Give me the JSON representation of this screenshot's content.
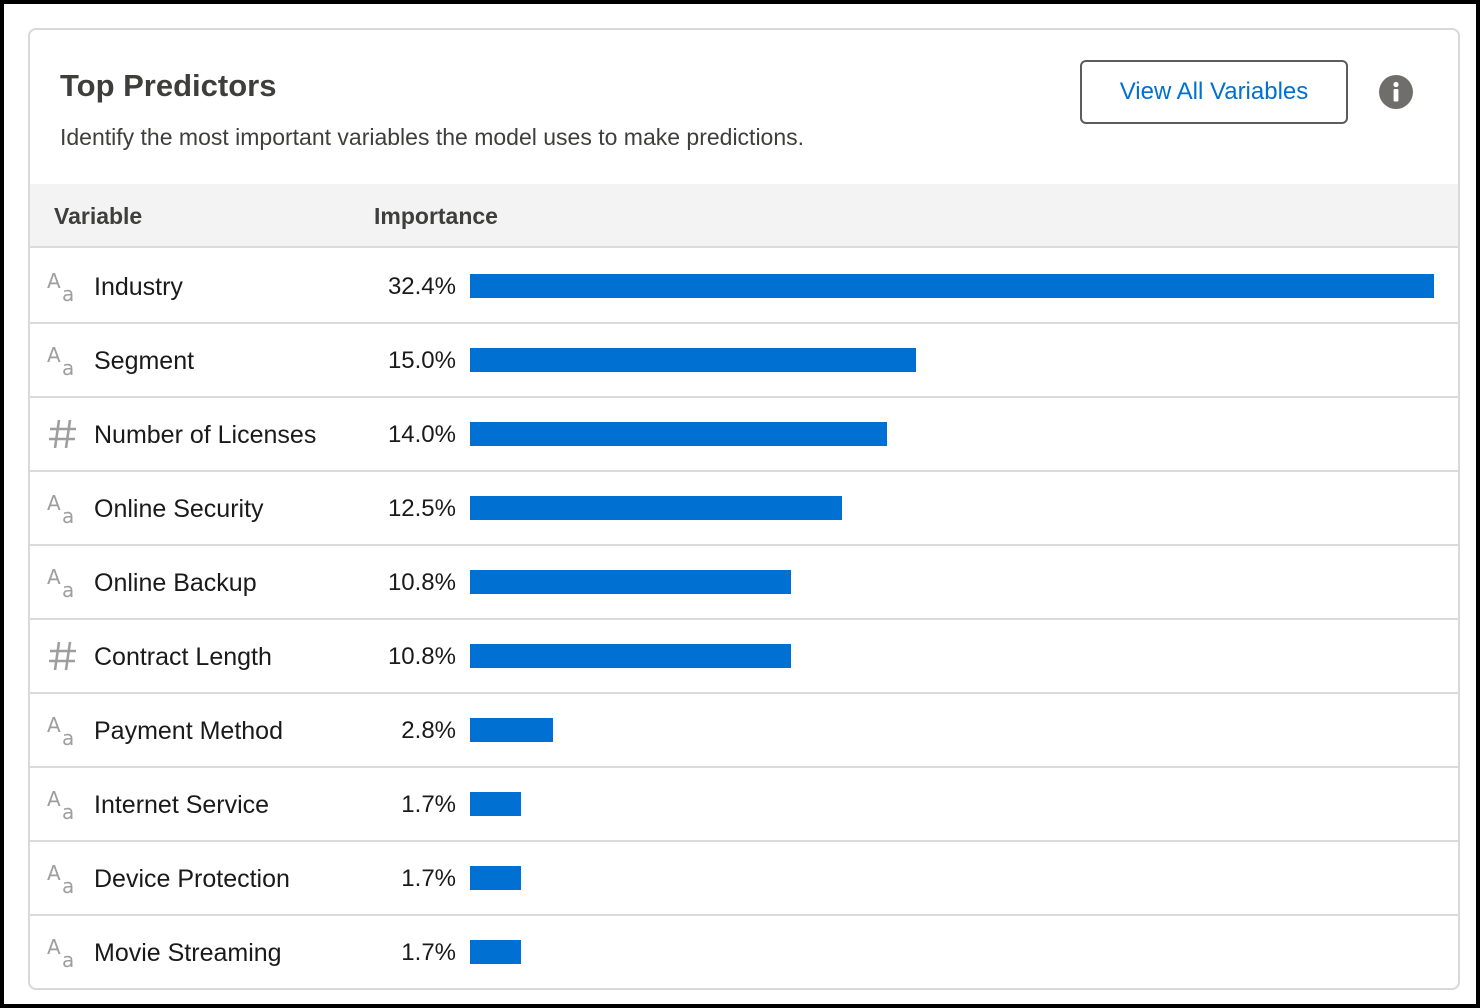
{
  "header": {
    "title": "Top Predictors",
    "subtitle": "Identify the most important variables the model uses to make predictions.",
    "view_all_label": "View All Variables"
  },
  "columns": {
    "variable": "Variable",
    "importance": "Importance"
  },
  "colors": {
    "bar": "#0070d2",
    "link": "#0070d2",
    "icon": "#9e9e9e",
    "info_icon": "#706e6b"
  },
  "max_importance": 32.4,
  "rows": [
    {
      "name": "Industry",
      "type": "text",
      "importance": 32.4,
      "label": "32.4%"
    },
    {
      "name": "Segment",
      "type": "text",
      "importance": 15.0,
      "label": "15.0%"
    },
    {
      "name": "Number of Licenses",
      "type": "number",
      "importance": 14.0,
      "label": "14.0%"
    },
    {
      "name": "Online Security",
      "type": "text",
      "importance": 12.5,
      "label": "12.5%"
    },
    {
      "name": "Online Backup",
      "type": "text",
      "importance": 10.8,
      "label": "10.8%"
    },
    {
      "name": "Contract Length",
      "type": "number",
      "importance": 10.8,
      "label": "10.8%"
    },
    {
      "name": "Payment Method",
      "type": "text",
      "importance": 2.8,
      "label": "2.8%"
    },
    {
      "name": "Internet Service",
      "type": "text",
      "importance": 1.7,
      "label": "1.7%"
    },
    {
      "name": "Device Protection",
      "type": "text",
      "importance": 1.7,
      "label": "1.7%"
    },
    {
      "name": "Movie Streaming",
      "type": "text",
      "importance": 1.7,
      "label": "1.7%"
    }
  ]
}
